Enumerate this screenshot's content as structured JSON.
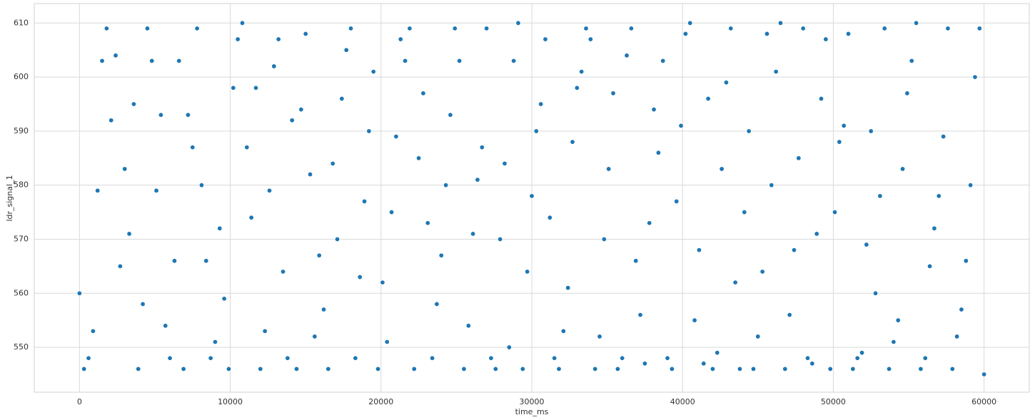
{
  "chart_data": {
    "type": "scatter",
    "x_label": "time_ms",
    "y_label": "ldr_signal_1",
    "color": "#1f77b4",
    "grid": true,
    "xlim": [
      -3000,
      63000
    ],
    "ylim": [
      541.7,
      613.6
    ],
    "xticks": [
      0,
      10000,
      20000,
      30000,
      40000,
      50000,
      60000
    ],
    "yticks": [
      550,
      560,
      570,
      580,
      590,
      600,
      610
    ],
    "x": [
      0,
      300,
      600,
      900,
      1200,
      1500,
      1800,
      2100,
      2400,
      2700,
      3000,
      3300,
      3600,
      3900,
      4200,
      4500,
      4800,
      5100,
      5400,
      5700,
      6000,
      6300,
      6600,
      6900,
      7200,
      7500,
      7800,
      8100,
      8400,
      8700,
      9000,
      9300,
      9600,
      9900,
      10200,
      10500,
      10800,
      11100,
      11400,
      11700,
      12000,
      12300,
      12600,
      12900,
      13200,
      13500,
      13800,
      14100,
      14400,
      14700,
      15000,
      15300,
      15600,
      15900,
      16200,
      16500,
      16800,
      17100,
      17400,
      17700,
      18000,
      18300,
      18600,
      18900,
      19200,
      19500,
      19800,
      20100,
      20400,
      20700,
      21000,
      21300,
      21600,
      21900,
      22200,
      22500,
      22800,
      23100,
      23400,
      23700,
      24000,
      24300,
      24600,
      24900,
      25200,
      25500,
      25800,
      26100,
      26400,
      26700,
      27000,
      27300,
      27600,
      27900,
      28200,
      28500,
      28800,
      29100,
      29400,
      29700,
      30000,
      30300,
      30600,
      30900,
      31200,
      31500,
      31800,
      32100,
      32400,
      32700,
      33000,
      33300,
      33600,
      33900,
      34200,
      34500,
      34800,
      35100,
      35400,
      35700,
      36000,
      36300,
      36600,
      36900,
      37200,
      37500,
      37800,
      38100,
      38400,
      38700,
      39000,
      39300,
      39600,
      39900,
      40200,
      40500,
      40800,
      41100,
      41400,
      41700,
      42000,
      42300,
      42600,
      42900,
      43200,
      43500,
      43800,
      44100,
      44400,
      44700,
      45000,
      45300,
      45600,
      45900,
      46200,
      46500,
      46800,
      47100,
      47400,
      47700,
      48000,
      48300,
      48600,
      48900,
      49200,
      49500,
      49800,
      50100,
      50400,
      50700,
      51000,
      51300,
      51600,
      51900,
      52200,
      52500,
      52800,
      53100,
      53400,
      53700,
      54000,
      54300,
      54600,
      54900,
      55200,
      55500,
      55800,
      56100,
      56400,
      56700,
      57000,
      57300,
      57600,
      57900,
      58200,
      58500,
      58800,
      59100,
      59400,
      59700,
      60000
    ],
    "values": [
      560,
      546,
      548,
      553,
      579,
      603,
      609,
      592,
      604,
      565,
      583,
      571,
      595,
      546,
      558,
      609,
      603,
      579,
      593,
      554,
      548,
      566,
      603,
      546,
      593,
      587,
      609,
      580,
      566,
      548,
      551,
      572,
      559,
      546,
      598,
      607,
      610,
      587,
      574,
      598,
      546,
      553,
      579,
      602,
      607,
      564,
      548,
      592,
      546,
      594,
      608,
      582,
      552,
      567,
      557,
      546,
      584,
      570,
      596,
      605,
      609,
      548,
      563,
      577,
      590,
      601,
      546,
      562,
      551,
      575,
      589,
      607,
      603,
      609,
      546,
      585,
      597,
      573,
      548,
      558,
      567,
      580,
      593,
      609,
      603,
      546,
      554,
      571,
      581,
      587,
      609,
      548,
      546,
      570,
      584,
      550,
      603,
      610,
      546,
      564,
      578,
      590,
      595,
      607,
      574,
      548,
      546,
      553,
      561,
      588,
      598,
      601,
      609,
      607,
      546,
      552,
      570,
      583,
      597,
      546,
      548,
      604,
      609,
      566,
      556,
      547,
      573,
      594,
      586,
      603,
      548,
      546,
      577,
      591,
      608,
      610,
      555,
      568,
      547,
      596,
      546,
      549,
      583,
      599,
      609,
      562,
      546,
      575,
      590,
      546,
      552,
      564,
      608,
      580,
      601,
      610,
      546,
      556,
      568,
      585,
      609,
      548,
      547,
      571,
      596,
      607,
      546,
      575,
      588,
      591,
      608,
      546,
      548,
      549,
      569,
      590,
      560,
      578,
      609,
      546,
      551,
      555,
      583,
      597,
      603,
      610,
      546,
      548,
      565,
      572,
      578,
      589,
      609,
      546,
      552,
      557,
      566,
      580,
      600,
      609,
      545
    ]
  }
}
